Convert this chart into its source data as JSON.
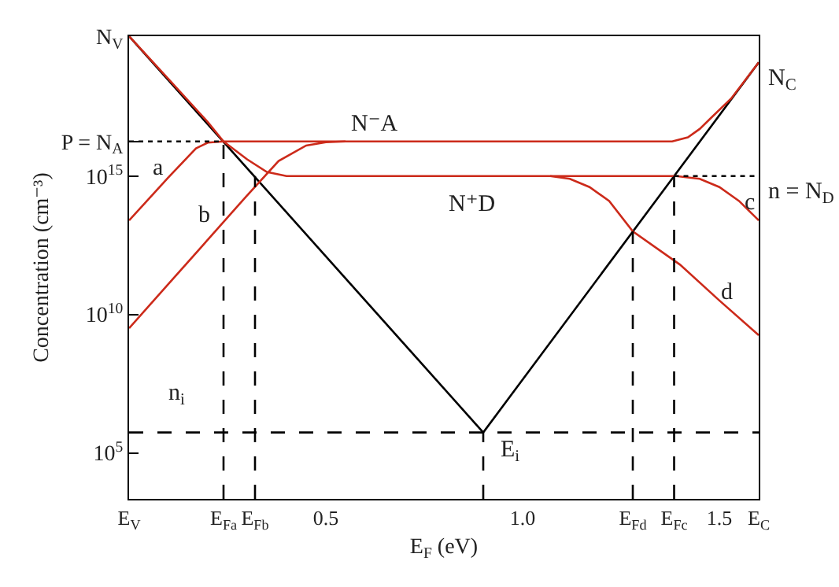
{
  "chart_data": {
    "type": "line",
    "xlabel": "E$_{F}$ (eV)",
    "ylabel": "Concentration (cm⁻³)",
    "log": "y",
    "grid": false,
    "marker": "none",
    "xlim": [
      0,
      1.6
    ],
    "xticks": [
      {
        "value": 0,
        "label": "E$_{V}$"
      },
      {
        "value": 0.24,
        "label": "E$_{Fa}$"
      },
      {
        "value": 0.32,
        "label": "E$_{Fb}$"
      },
      0.5,
      {
        "value": 1,
        "label": "1.0"
      },
      {
        "value": 1.28,
        "label": "E$_{Fd}$"
      },
      {
        "value": 1.385,
        "label": "E$_{Fc}$"
      },
      1.5,
      {
        "value": 1.6,
        "label": "E$_{C}$"
      }
    ],
    "ylim": [
      2200.0,
      1.12e+20
    ],
    "yticks": [
      {
        "value": 100000.0,
        "label": "10$^{5}$"
      },
      {
        "value": 10000000000.0,
        "label": "10$^{10}$"
      },
      {
        "value": 1000000000000000.0,
        "label": "10$^{15}$"
      },
      {
        "value": 1.78e+16,
        "label": "P = N$_{A}$"
      },
      {
        "value": 1.12e+20,
        "label": "N$_{V}$"
      }
    ],
    "series": [
      {
        "color": "#000000",
        "line_style": "solid",
        "x": [
          0,
          0.9,
          1.6
        ],
        "values": [
          1.12e+20,
          550000.0,
          1.26e+19
        ]
      },
      {
        "color": "#cc2a1a",
        "line_style": "solid",
        "x": [
          0,
          0.1,
          0.17,
          0.2,
          0.24,
          1.38,
          1.42,
          1.45,
          1.48,
          1.53,
          1.6
        ],
        "values": [
          25000000000000.0,
          890000000000000.0,
          1e+16,
          1.6e+16,
          1.78e+16,
          1.78e+16,
          2.5e+16,
          5e+16,
          1.3e+17,
          6.3e+17,
          1.26e+19
        ]
      },
      {
        "color": "#cc2a1a",
        "line_style": "solid",
        "x": [
          0,
          0.1,
          0.2,
          0.24,
          0.3,
          0.35,
          0.4,
          1.39,
          1.45,
          1.5,
          1.55,
          1.6
        ],
        "values": [
          1.12e+20,
          3.2e+18,
          8.9e+16,
          1.78e+16,
          4000000000000000.0,
          1400000000000000.0,
          1000000000000000.0,
          1000000000000000.0,
          790000000000000.0,
          400000000000000.0,
          126000000000000.0,
          25000000000000.0
        ]
      },
      {
        "color": "#cc2a1a",
        "line_style": "solid",
        "x": [
          0,
          0.1,
          0.2,
          0.3,
          0.38,
          0.45,
          0.5,
          0.55
        ],
        "values": [
          3200000000.0,
          126000000000.0,
          5000000000000.0,
          200000000000000.0,
          3500000000000000.0,
          1.26e+16,
          1.66e+16,
          1.78e+16
        ]
      },
      {
        "color": "#cc2a1a",
        "line_style": "solid",
        "x": [
          1.07,
          1.12,
          1.17,
          1.22,
          1.28,
          1.4,
          1.5,
          1.6
        ],
        "values": [
          1000000000000000.0,
          790000000000000.0,
          400000000000000.0,
          126000000000000.0,
          10000000000000.0,
          630000000000.0,
          32000000000.0,
          1800000000.0
        ]
      },
      {
        "color": "#000000",
        "line_style": "dashed",
        "x": [
          0.9,
          0.9
        ],
        "values": [
          2200.0,
          550000.0
        ]
      },
      {
        "color": "#000000",
        "line_style": "dashed",
        "x": [
          0.24,
          0.24
        ],
        "values": [
          2200.0,
          1.78e+16
        ]
      },
      {
        "color": "#000000",
        "line_style": "dashed",
        "x": [
          0.32,
          0.32
        ],
        "values": [
          2200.0,
          1000000000000000.0
        ]
      },
      {
        "color": "#000000",
        "line_style": "dashed",
        "x": [
          1.28,
          1.28
        ],
        "values": [
          2200.0,
          10000000000000.0
        ]
      },
      {
        "color": "#000000",
        "line_style": "dashed",
        "x": [
          1.385,
          1.385
        ],
        "values": [
          2200.0,
          1000000000000000.0
        ]
      },
      {
        "color": "#000000",
        "line_style": "dotted",
        "x": [
          0,
          0.24
        ],
        "values": [
          1.78e+16,
          1.78e+16
        ]
      },
      {
        "color": "#000000",
        "line_style": "dotted",
        "x": [
          1.385,
          1.6
        ],
        "values": [
          1000000000000000.0,
          1000000000000000.0
        ]
      }
    ],
    "ref_lines": [
      {
        "axis": "y",
        "value": 550000.0,
        "color": "#000000",
        "line_style": "dashed"
      }
    ],
    "annotations": [
      "N⁻A",
      "N⁺D",
      "a",
      "b",
      "c",
      "d",
      "n$_{i}$",
      "E$_{i}$",
      "N$_{C}$",
      "n = N$_{D}$"
    ]
  }
}
